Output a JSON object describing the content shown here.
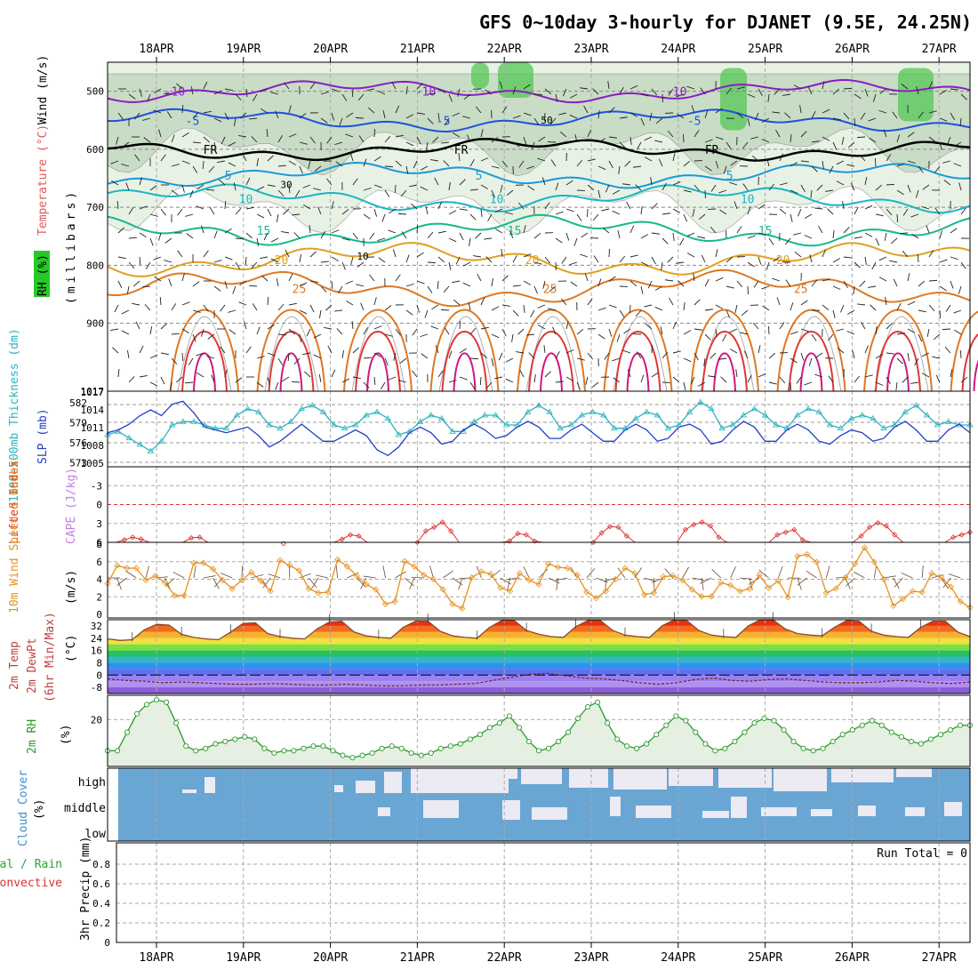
{
  "title": "GFS 0~10day 3-hourly for DJANET (9.5E, 24.25N)",
  "dates": [
    "18APR",
    "19APR",
    "20APR",
    "21APR",
    "22APR",
    "23APR",
    "24APR",
    "25APR",
    "26APR",
    "27APR"
  ],
  "chart_data": [
    {
      "panel": "upper-air",
      "type": "contour",
      "ylabel": [
        "RH (%)",
        "Temperature (°C)",
        "Wind (m/s)"
      ],
      "yunit": "(millibars)",
      "yticks": [
        500,
        600,
        700,
        800,
        900
      ],
      "ylim": [
        1017,
        450
      ],
      "temperature_contours": [
        {
          "label": "-10",
          "value": -10,
          "color": "#8c1cc4",
          "level_mb": 500
        },
        {
          "label": "-5",
          "value": -5,
          "color": "#2050e0",
          "level_mb": 550
        },
        {
          "label": "FR",
          "value": 0,
          "color": "#000000",
          "level_mb": 600
        },
        {
          "label": "5",
          "value": 5,
          "color": "#1a9ad8",
          "level_mb": 645
        },
        {
          "label": "10",
          "value": 10,
          "color": "#1cb4c4",
          "level_mb": 685
        },
        {
          "label": "15",
          "value": 15,
          "color": "#18b890",
          "level_mb": 740
        },
        {
          "label": "20",
          "value": 20,
          "color": "#e0a020",
          "level_mb": 790
        },
        {
          "label": "25",
          "value": 25,
          "color": "#e07820",
          "level_mb": 840
        }
      ],
      "rh_labels": [
        "10",
        "30",
        "50"
      ],
      "grid": true
    },
    {
      "panel": "thickness-slp",
      "type": "line",
      "ylabel_left": "1000-500mb Thickness (dm)",
      "ylabel_right": "SLP (mb)",
      "left_ticks": [
        "582",
        "579",
        "576",
        "573"
      ],
      "right_ticks": [
        "1017",
        "1014",
        "1011",
        "1008",
        "1005"
      ],
      "series": [
        {
          "name": "Thickness",
          "color": "#28b4c0",
          "values": [
            577.0,
            577.5,
            576.5,
            575.5,
            574.5,
            576.0,
            578.5,
            579.0,
            579.0,
            578.5,
            578.0,
            578.0,
            580.0,
            581.0,
            580.5,
            578.5,
            578.0,
            579.0,
            581.0,
            581.5,
            580.5,
            578.5,
            578.0,
            578.5,
            580.0,
            580.5,
            579.5,
            577.0,
            577.5,
            579.0,
            580.0,
            579.5,
            577.5,
            577.5,
            579.0,
            580.0,
            580.0,
            578.5,
            578.5,
            580.5,
            581.5,
            580.5,
            578.0,
            578.5,
            580.0,
            580.5,
            580.0,
            578.0,
            578.0,
            579.5,
            580.5,
            580.0,
            578.0,
            578.5,
            580.5,
            582.0,
            581.0,
            578.0,
            578.5,
            580.0,
            581.0,
            580.0,
            578.5,
            578.0,
            580.0,
            581.0,
            580.5,
            578.5,
            578.0,
            579.5,
            580.0,
            579.5,
            578.0,
            578.5,
            580.5,
            581.5,
            580.0,
            578.5,
            579.0,
            578.5,
            578.5
          ]
        },
        {
          "name": "SLP",
          "color": "#2040c8",
          "values": [
            1010.5,
            1011.0,
            1012.0,
            1013.5,
            1014.5,
            1013.5,
            1015.5,
            1016.0,
            1014.0,
            1011.5,
            1011.0,
            1010.5,
            1011.0,
            1011.5,
            1010.0,
            1008.0,
            1009.0,
            1010.5,
            1012.0,
            1010.5,
            1009.0,
            1009.0,
            1010.0,
            1011.0,
            1010.0,
            1007.5,
            1006.5,
            1008.0,
            1010.5,
            1011.5,
            1010.5,
            1008.5,
            1009.0,
            1011.0,
            1012.0,
            1011.0,
            1009.5,
            1010.0,
            1011.5,
            1012.5,
            1011.5,
            1009.5,
            1009.5,
            1011.0,
            1012.0,
            1010.5,
            1009.0,
            1009.0,
            1011.0,
            1012.0,
            1011.0,
            1009.0,
            1009.5,
            1011.5,
            1012.0,
            1011.0,
            1008.5,
            1009.0,
            1011.0,
            1012.5,
            1011.5,
            1009.0,
            1009.0,
            1011.0,
            1012.0,
            1011.0,
            1009.0,
            1008.5,
            1010.0,
            1011.0,
            1010.5,
            1009.0,
            1009.5,
            1011.5,
            1012.5,
            1011.0,
            1009.0,
            1009.0,
            1011.0,
            1012.0,
            1010.5
          ]
        }
      ]
    },
    {
      "panel": "instability",
      "type": "line",
      "ylabel": [
        "Lifted Index",
        "CAPE (J/kg)"
      ],
      "yticks": [
        "-3",
        "0",
        "3",
        "6"
      ],
      "ylim": [
        -6,
        6
      ],
      "series": [
        {
          "name": "Lifted Index",
          "color": "#e03030",
          "values": [
            7,
            7,
            5.6,
            5.2,
            5.5,
            7,
            7,
            7,
            7,
            6.5,
            5.3,
            5.2,
            7,
            7,
            7,
            7,
            7,
            7,
            7,
            7,
            7,
            6.2,
            7,
            7,
            7,
            7,
            7,
            7,
            5.5,
            4.8,
            5.0,
            7,
            7,
            7,
            7,
            7,
            7,
            6,
            4.2,
            3.6,
            2.8,
            4.2,
            7,
            7,
            7,
            7,
            7,
            7,
            5.8,
            4.6,
            4.8,
            5.8,
            7,
            7,
            7,
            7,
            7,
            7,
            6,
            4.5,
            3.5,
            3.6,
            5,
            7,
            7,
            7,
            7,
            7,
            7,
            4.0,
            3.2,
            2.8,
            3.4,
            5.2,
            7,
            7,
            7,
            7,
            7,
            7,
            4.8,
            4.4,
            4.0,
            5.6,
            7,
            7,
            7,
            7,
            7,
            7,
            5.0,
            3.6,
            2.9,
            3.4,
            4.8,
            7,
            7,
            7,
            7,
            7,
            7,
            5.2,
            4.8,
            4.4
          ]
        }
      ]
    },
    {
      "panel": "10m-wind",
      "type": "line",
      "ylabel": [
        "10m Wind Speed & Barbs",
        "(m/s)"
      ],
      "yticks": [
        "8",
        "6",
        "4",
        "2",
        "0"
      ],
      "ylim": [
        0,
        8
      ],
      "series": [
        {
          "name": "10m Wind Speed",
          "color": "#e8901c",
          "values": [
            3.6,
            5.7,
            5.4,
            5.4,
            4.0,
            4.5,
            3.7,
            2.2,
            2.2,
            6.0,
            6.0,
            5.3,
            4.0,
            3.0,
            4.0,
            4.9,
            3.9,
            2.7,
            6.3,
            5.7,
            5.1,
            3.0,
            2.5,
            2.6,
            6.4,
            5.6,
            4.5,
            3.5,
            2.9,
            1.2,
            1.5,
            6.2,
            5.6,
            4.6,
            4.1,
            2.9,
            1.2,
            0.7,
            4.3,
            5.0,
            4.7,
            3.1,
            2.7,
            4.8,
            4.0,
            3.5,
            5.9,
            5.5,
            5.4,
            4.6,
            2.6,
            1.9,
            2.7,
            4.1,
            5.4,
            4.8,
            2.3,
            2.5,
            4.4,
            4.5,
            4.0,
            2.9,
            2.1,
            2.1,
            3.7,
            3.4,
            2.7,
            3.0,
            4.6,
            3.1,
            3.9,
            2.0,
            6.8,
            7.0,
            6.1,
            2.5,
            3.0,
            4.3,
            5.9,
            7.8,
            6.1,
            4.1,
            1.0,
            1.8,
            2.7,
            2.6,
            4.8,
            4.3,
            3.2,
            1.5,
            0.8
          ]
        }
      ]
    },
    {
      "panel": "2m-temp",
      "type": "area",
      "ylabel": [
        "2m Temp",
        "2m DewPt",
        "(6hr Min/Max)",
        "(°C)"
      ],
      "yticks": [
        "32",
        "24",
        "16",
        "8",
        "0",
        "-8"
      ],
      "ylim": [
        -12,
        36
      ],
      "series": [
        {
          "name": "2m Temp",
          "color": "#8a4a2a",
          "values": [
            23.5,
            22.5,
            23,
            29.5,
            33,
            32.5,
            26.5,
            24.5,
            23.5,
            23,
            28,
            33.5,
            34,
            27,
            25,
            24,
            23.5,
            30,
            34.5,
            35,
            28,
            25.5,
            24.5,
            24,
            31,
            35,
            35,
            28.5,
            25.5,
            24.5,
            24,
            31,
            35.5,
            35.5,
            29,
            26.5,
            25,
            24.5,
            31.5,
            35.5,
            35.5,
            29,
            26,
            25,
            24.5,
            32,
            36,
            35.5,
            29,
            26,
            25,
            24.5,
            32,
            36,
            36,
            30,
            27,
            26,
            25.5,
            31,
            35.5,
            35,
            28.5,
            26,
            25,
            24.5,
            31,
            35,
            35,
            28,
            25
          ]
        },
        {
          "name": "2m DewPt",
          "color": "#7a1e1e",
          "values": [
            -2.5,
            -3.5,
            -4,
            -5,
            -4.5,
            -5,
            -5.5,
            -6,
            -6,
            -5.5,
            -6,
            -6.5,
            -6.5,
            -6,
            -6.5,
            -7,
            -7,
            -6.5,
            -6.5,
            -6,
            -5.5,
            -3.5,
            -1.5,
            0.5,
            1,
            -0.5,
            -2,
            -2.5,
            -3.5,
            -5,
            -6,
            -5,
            -3,
            -2,
            -3.5,
            -4,
            -3,
            -2.5,
            -3.5,
            -4.5,
            -5,
            -5,
            -4.5,
            -3.5,
            -4,
            -5,
            -5.5,
            -4.5
          ]
        }
      ]
    },
    {
      "panel": "2m-rh",
      "type": "area",
      "ylabel": [
        "2m RH",
        "(%)"
      ],
      "yticks": [
        "20"
      ],
      "series": [
        {
          "name": "2m RH",
          "color": "#2a9a2a",
          "values": [
            6,
            6,
            14,
            22,
            26,
            28,
            27,
            18,
            8,
            6,
            7,
            9,
            10,
            11,
            12,
            11,
            7,
            5,
            6,
            6,
            7,
            8,
            8,
            6,
            4,
            3,
            4,
            5,
            7,
            8,
            7,
            5,
            4,
            5,
            7,
            8,
            9,
            11,
            13,
            16,
            18,
            21,
            16,
            10,
            6,
            7,
            10,
            14,
            20,
            25,
            27,
            18,
            11,
            8,
            7,
            9,
            13,
            17,
            21,
            19,
            14,
            9,
            6,
            7,
            10,
            14,
            18,
            20,
            19,
            15,
            10,
            7,
            6,
            7,
            10,
            13,
            15,
            17,
            19,
            17,
            14,
            12,
            10,
            9,
            11,
            13,
            15,
            17,
            17
          ]
        }
      ]
    },
    {
      "panel": "cloud-cover",
      "type": "heatmap",
      "ylabel": [
        "Cloud Cover",
        "(%)"
      ],
      "levels": [
        "high",
        "middle",
        "low"
      ]
    },
    {
      "panel": "precip",
      "type": "bar",
      "ylabel": [
        "Total / Rain",
        "Convective",
        "3hr Precip (mm)"
      ],
      "yticks": [
        "0.8",
        "0.6",
        "0.4",
        "0.2",
        "0"
      ],
      "ylim": [
        0,
        1
      ],
      "note": "Run Total = 0",
      "values": []
    }
  ]
}
